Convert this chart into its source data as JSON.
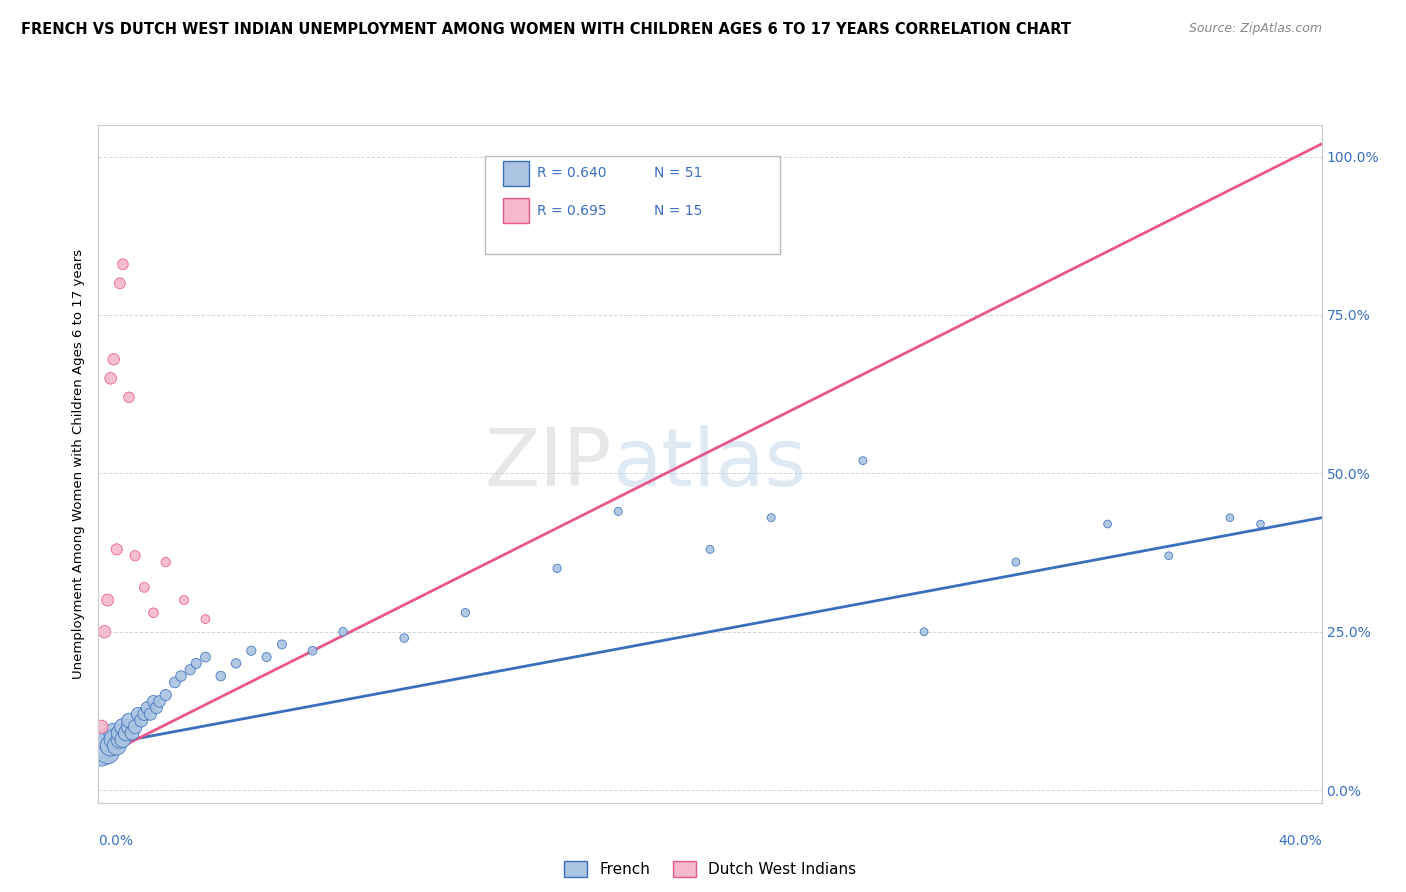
{
  "title": "FRENCH VS DUTCH WEST INDIAN UNEMPLOYMENT AMONG WOMEN WITH CHILDREN AGES 6 TO 17 YEARS CORRELATION CHART",
  "source": "Source: ZipAtlas.com",
  "ylabel": "Unemployment Among Women with Children Ages 6 to 17 years",
  "yticks": [
    "100.0%",
    "75.0%",
    "50.0%",
    "25.0%",
    "0.0%"
  ],
  "ytick_values": [
    1.0,
    0.75,
    0.5,
    0.25,
    0.0
  ],
  "legend_french": "French",
  "legend_dutch": "Dutch West Indians",
  "french_R": "0.640",
  "french_N": "51",
  "dutch_R": "0.695",
  "dutch_N": "15",
  "french_color": "#aac4e2",
  "french_line_color": "#3a6fbd",
  "dutch_color": "#f5b8cc",
  "dutch_line_color": "#e8578a",
  "watermark_zip": "ZIP",
  "watermark_atlas": "atlas",
  "french_x": [
    0.001,
    0.002,
    0.003,
    0.003,
    0.004,
    0.005,
    0.005,
    0.006,
    0.007,
    0.007,
    0.008,
    0.008,
    0.009,
    0.01,
    0.01,
    0.011,
    0.012,
    0.013,
    0.014,
    0.015,
    0.016,
    0.017,
    0.018,
    0.019,
    0.02,
    0.022,
    0.025,
    0.027,
    0.03,
    0.032,
    0.035,
    0.04,
    0.045,
    0.05,
    0.055,
    0.06,
    0.07,
    0.08,
    0.1,
    0.12,
    0.15,
    0.17,
    0.2,
    0.22,
    0.25,
    0.27,
    0.3,
    0.33,
    0.35,
    0.37,
    0.38
  ],
  "french_y": [
    0.06,
    0.07,
    0.06,
    0.08,
    0.07,
    0.09,
    0.08,
    0.07,
    0.08,
    0.09,
    0.1,
    0.08,
    0.09,
    0.1,
    0.11,
    0.09,
    0.1,
    0.12,
    0.11,
    0.12,
    0.13,
    0.12,
    0.14,
    0.13,
    0.14,
    0.15,
    0.17,
    0.18,
    0.19,
    0.2,
    0.21,
    0.18,
    0.2,
    0.22,
    0.21,
    0.23,
    0.22,
    0.25,
    0.24,
    0.28,
    0.35,
    0.44,
    0.38,
    0.43,
    0.52,
    0.25,
    0.36,
    0.42,
    0.37,
    0.43,
    0.42
  ],
  "french_sizes": [
    400,
    350,
    280,
    260,
    220,
    200,
    190,
    180,
    160,
    150,
    140,
    130,
    120,
    120,
    110,
    100,
    100,
    95,
    90,
    85,
    80,
    78,
    75,
    72,
    70,
    65,
    60,
    58,
    55,
    52,
    50,
    48,
    46,
    44,
    42,
    42,
    40,
    38,
    38,
    36,
    35,
    34,
    33,
    33,
    32,
    32,
    32,
    31,
    31,
    30,
    30
  ],
  "dutch_x": [
    0.001,
    0.002,
    0.003,
    0.004,
    0.005,
    0.006,
    0.007,
    0.008,
    0.01,
    0.012,
    0.015,
    0.018,
    0.022,
    0.028,
    0.035
  ],
  "dutch_y": [
    0.1,
    0.25,
    0.3,
    0.65,
    0.68,
    0.38,
    0.8,
    0.83,
    0.62,
    0.37,
    0.32,
    0.28,
    0.36,
    0.3,
    0.27
  ],
  "dutch_sizes": [
    90,
    80,
    75,
    70,
    68,
    65,
    62,
    60,
    58,
    55,
    50,
    48,
    45,
    42,
    40
  ],
  "xlim": [
    0.0,
    0.4
  ],
  "ylim": [
    -0.02,
    1.05
  ],
  "background_color": "#ffffff",
  "grid_color": "#cccccc",
  "dutch_trend_x0": 0.0,
  "dutch_trend_y0": 0.05,
  "dutch_trend_x1": 0.4,
  "dutch_trend_y1": 1.02,
  "french_trend_x0": 0.0,
  "french_trend_y0": 0.07,
  "french_trend_x1": 0.4,
  "french_trend_y1": 0.43
}
